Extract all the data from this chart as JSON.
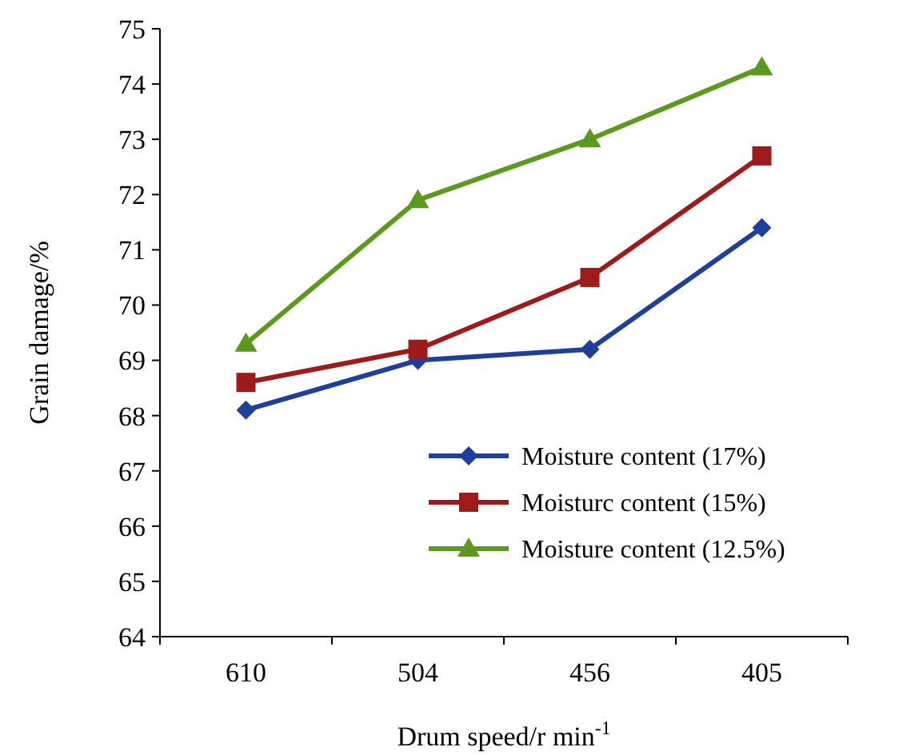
{
  "chart_data": {
    "type": "line",
    "xlabel": "Drum speed/r min$^{-1}$",
    "ylabel": "Grain damage/%",
    "categories": [
      "610",
      "504",
      "456",
      "405"
    ],
    "series": [
      {
        "name": "Moisture content (17%)",
        "color": "#1f3f9a",
        "values": [
          68.1,
          69.0,
          69.2,
          71.4
        ],
        "marker": "diamond"
      },
      {
        "name": "Moisturc content (15%)",
        "color": "#9e1b1b",
        "values": [
          68.6,
          69.2,
          70.5,
          72.7
        ],
        "marker": "square"
      },
      {
        "name": "Moisture content (12.5%)",
        "color": "#5b9a1e",
        "values": [
          69.3,
          71.9,
          73.0,
          74.3
        ],
        "marker": "triangle"
      }
    ],
    "ylim": [
      64,
      75
    ],
    "yticks": [
      64,
      65,
      66,
      67,
      68,
      69,
      70,
      71,
      72,
      73,
      74,
      75
    ],
    "legend": "bottom right",
    "grid": false
  }
}
